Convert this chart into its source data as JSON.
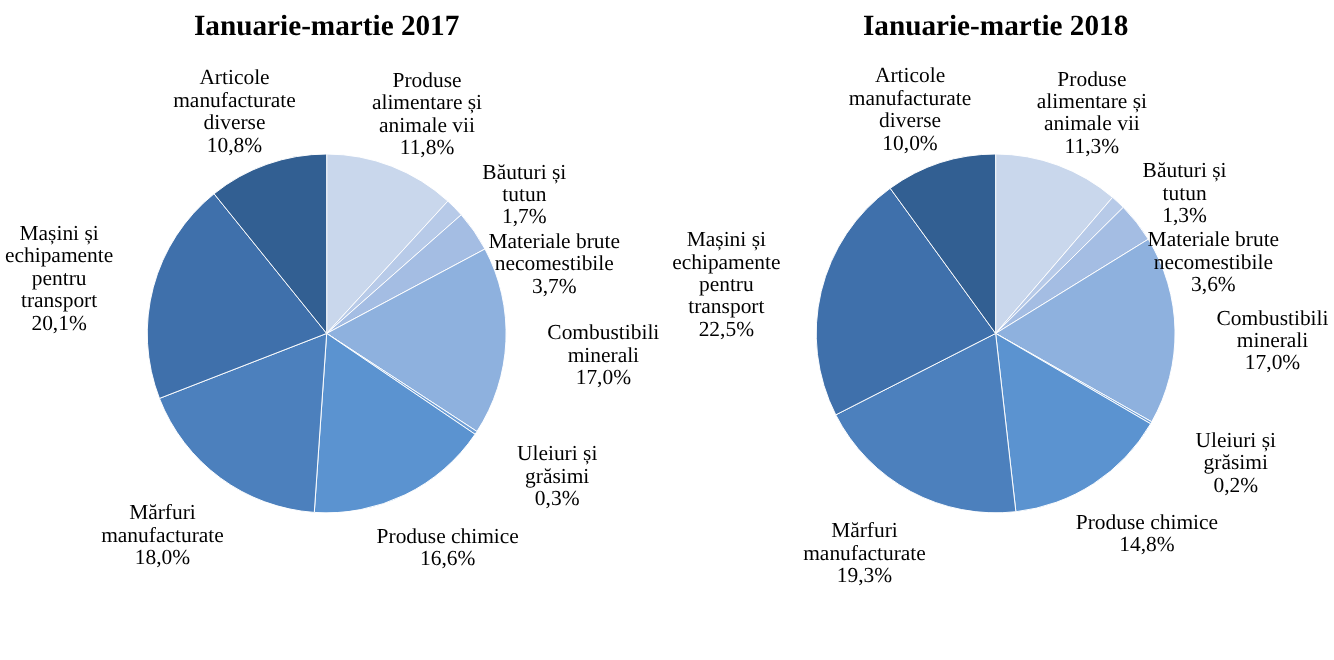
{
  "chart_data": [
    {
      "type": "pie",
      "title": "Ianuarie-martie 2017",
      "categories": [
        "Produse alimentare și animale vii",
        "Băuturi și tutun",
        "Materiale brute necomestibile",
        "Combustibili minerali",
        "Uleiuri și grăsimi",
        "Produse chimice",
        "Mărfuri manufacturate",
        "Mașini și echipamente pentru transport",
        "Articole manufacturate diverse"
      ],
      "values": [
        11.8,
        1.7,
        3.7,
        17.0,
        0.3,
        16.6,
        18.0,
        20.1,
        10.8
      ],
      "value_labels": [
        "11,8%",
        "1,7%",
        "3,7%",
        "17,0%",
        "0,3%",
        "16,6%",
        "18,0%",
        "20,1%",
        "10,8%"
      ],
      "colors": [
        "#c9d7ec",
        "#b7cae8",
        "#a4bde3",
        "#8eb1de",
        "#6f9fd6",
        "#5b93d0",
        "#4c80bd",
        "#3f70ab",
        "#325f92"
      ]
    },
    {
      "type": "pie",
      "title": "Ianuarie-martie 2018",
      "categories": [
        "Produse alimentare și animale vii",
        "Băuturi și tutun",
        "Materiale brute necomestibile",
        "Combustibili minerali",
        "Uleiuri și grăsimi",
        "Produse chimice",
        "Mărfuri manufacturate",
        "Mașini și echipamente pentru transport",
        "Articole manufacturate diverse"
      ],
      "values": [
        11.3,
        1.3,
        3.6,
        17.0,
        0.2,
        14.8,
        19.3,
        22.5,
        10.0
      ],
      "value_labels": [
        "11,3%",
        "1,3%",
        "3,6%",
        "17,0%",
        "0,2%",
        "14,8%",
        "19,3%",
        "22,5%",
        "10,0%"
      ],
      "colors": [
        "#c9d7ec",
        "#b7cae8",
        "#a4bde3",
        "#8eb1de",
        "#6f9fd6",
        "#5b93d0",
        "#4c80bd",
        "#3f70ab",
        "#325f92"
      ]
    }
  ]
}
